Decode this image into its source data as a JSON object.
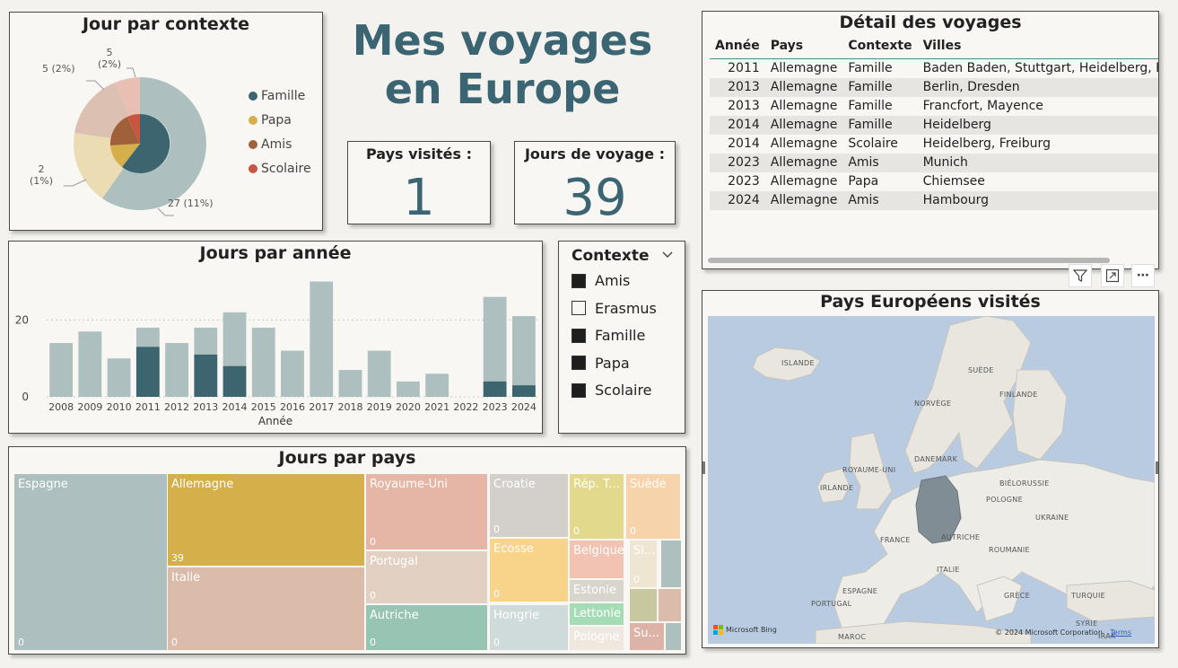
{
  "title_line1": "Mes voyages",
  "title_line2": "en Europe",
  "kpis": {
    "countries_label": "Pays visités :",
    "countries_value": "1",
    "days_label": "Jours de voyage :",
    "days_value": "39"
  },
  "pie": {
    "title": "Jour par contexte",
    "legend": [
      {
        "name": "Famille",
        "color": "#3d6570"
      },
      {
        "name": "Papa",
        "color": "#d5b04a"
      },
      {
        "name": "Amis",
        "color": "#a0603a"
      },
      {
        "name": "Scolaire",
        "color": "#c95540"
      }
    ],
    "labels": {
      "top": "5",
      "top_pct": "(2%)",
      "left": "5 (2%)",
      "bottom_left": "2",
      "bottom_left_pct": "(1%)",
      "bottom_right": "27 (11%)"
    }
  },
  "detail": {
    "title": "Détail des voyages",
    "columns": [
      "Année",
      "Pays",
      "Contexte",
      "Villes"
    ],
    "rows": [
      [
        "2011",
        "Allemagne",
        "Famille",
        "Baden Baden, Stuttgart, Heidelberg, B"
      ],
      [
        "2013",
        "Allemagne",
        "Famille",
        "Berlin, Dresden"
      ],
      [
        "2013",
        "Allemagne",
        "Famille",
        "Francfort, Mayence"
      ],
      [
        "2014",
        "Allemagne",
        "Famille",
        "Heidelberg"
      ],
      [
        "2014",
        "Allemagne",
        "Scolaire",
        "Heidelberg, Freiburg"
      ],
      [
        "2023",
        "Allemagne",
        "Amis",
        "Munich"
      ],
      [
        "2023",
        "Allemagne",
        "Papa",
        "Chiemsee"
      ],
      [
        "2024",
        "Allemagne",
        "Amis",
        "Hambourg"
      ]
    ]
  },
  "chart_data": {
    "type": "bar",
    "title": "Jours par année",
    "xlabel": "Année",
    "ylabel": "",
    "categories": [
      "2008",
      "2009",
      "2010",
      "2011",
      "2012",
      "2013",
      "2014",
      "2015",
      "2016",
      "2017",
      "2018",
      "2019",
      "2020",
      "2021",
      "2022",
      "2023",
      "2024"
    ],
    "series": [
      {
        "values": [
          14,
          17,
          10,
          18,
          14,
          18,
          22,
          18,
          12,
          30,
          7,
          12,
          4,
          6,
          0,
          26,
          21
        ]
      },
      {
        "values": [
          0,
          0,
          0,
          13,
          0,
          11,
          8,
          0,
          0,
          0,
          0,
          0,
          0,
          0,
          0,
          4,
          3
        ]
      }
    ],
    "yticks": [
      "0",
      "20"
    ],
    "ylim": [
      0,
      32
    ],
    "colors": {
      "total": "#adbfbf",
      "selected": "#3d6570"
    },
    "grid": true
  },
  "slicer": {
    "title": "Contexte",
    "items": [
      {
        "label": "Amis",
        "checked": true
      },
      {
        "label": "Erasmus",
        "checked": false
      },
      {
        "label": "Famille",
        "checked": true
      },
      {
        "label": "Papa",
        "checked": true
      },
      {
        "label": "Scolaire",
        "checked": true
      }
    ]
  },
  "treemap": {
    "title": "Jours par pays",
    "tiles": [
      {
        "name": "Espagne",
        "value": "0",
        "color": "#adbfbf"
      },
      {
        "name": "Allemagne",
        "value": "39",
        "color": "#d5b04a"
      },
      {
        "name": "Italie",
        "value": "0",
        "color": "#dbbbaa"
      },
      {
        "name": "Royaume-Uni",
        "value": "0",
        "color": "#e5b6a6"
      },
      {
        "name": "Portugal",
        "value": "0",
        "color": "#e2d1c2"
      },
      {
        "name": "Autriche",
        "value": "0",
        "color": "#98c5b3"
      },
      {
        "name": "Croatie",
        "value": "0",
        "color": "#d3d0cb"
      },
      {
        "name": "Ecosse",
        "value": "0",
        "color": "#f7d48a"
      },
      {
        "name": "Hongrie",
        "value": "0",
        "color": "#cfdadb"
      },
      {
        "name": "Rép. T...",
        "value": "0",
        "color": "#e2d98c"
      },
      {
        "name": "Suède",
        "value": "0",
        "color": "#f7d3ab"
      },
      {
        "name": "Belgique",
        "value": "",
        "color": "#f2c2b2"
      },
      {
        "name": "Sl...",
        "value": "0",
        "color": "#eee5d2"
      },
      {
        "name": "Estonie",
        "value": "",
        "color": "#d8d5cc"
      },
      {
        "name": "Lettonie",
        "value": "",
        "color": "#a6dcb5"
      },
      {
        "name": "Pologne",
        "value": "",
        "color": "#eee8e0"
      },
      {
        "name": "Su...",
        "value": "",
        "color": "#dcb3a6"
      }
    ]
  },
  "map": {
    "title": "Pays Européens visités",
    "labels": [
      "ISLANDE",
      "SUÈDE",
      "FINLANDE",
      "NORVÈGE",
      "DANEMARK",
      "ROYAUME-UNI",
      "IRLANDE",
      "BIÉLORUSSIE",
      "POLOGNE",
      "UKRAINE",
      "FRANCE",
      "AUTRICHE",
      "ROUMANIE",
      "ITALIE",
      "ESPAGNE",
      "GRÈCE",
      "TURQUIE",
      "PORTUGAL",
      "MAROC",
      "SYRIE",
      "IRAK"
    ],
    "copyright": "© 2024 Microsoft Corporation",
    "terms": "Terms",
    "provider": "Microsoft Bing"
  }
}
